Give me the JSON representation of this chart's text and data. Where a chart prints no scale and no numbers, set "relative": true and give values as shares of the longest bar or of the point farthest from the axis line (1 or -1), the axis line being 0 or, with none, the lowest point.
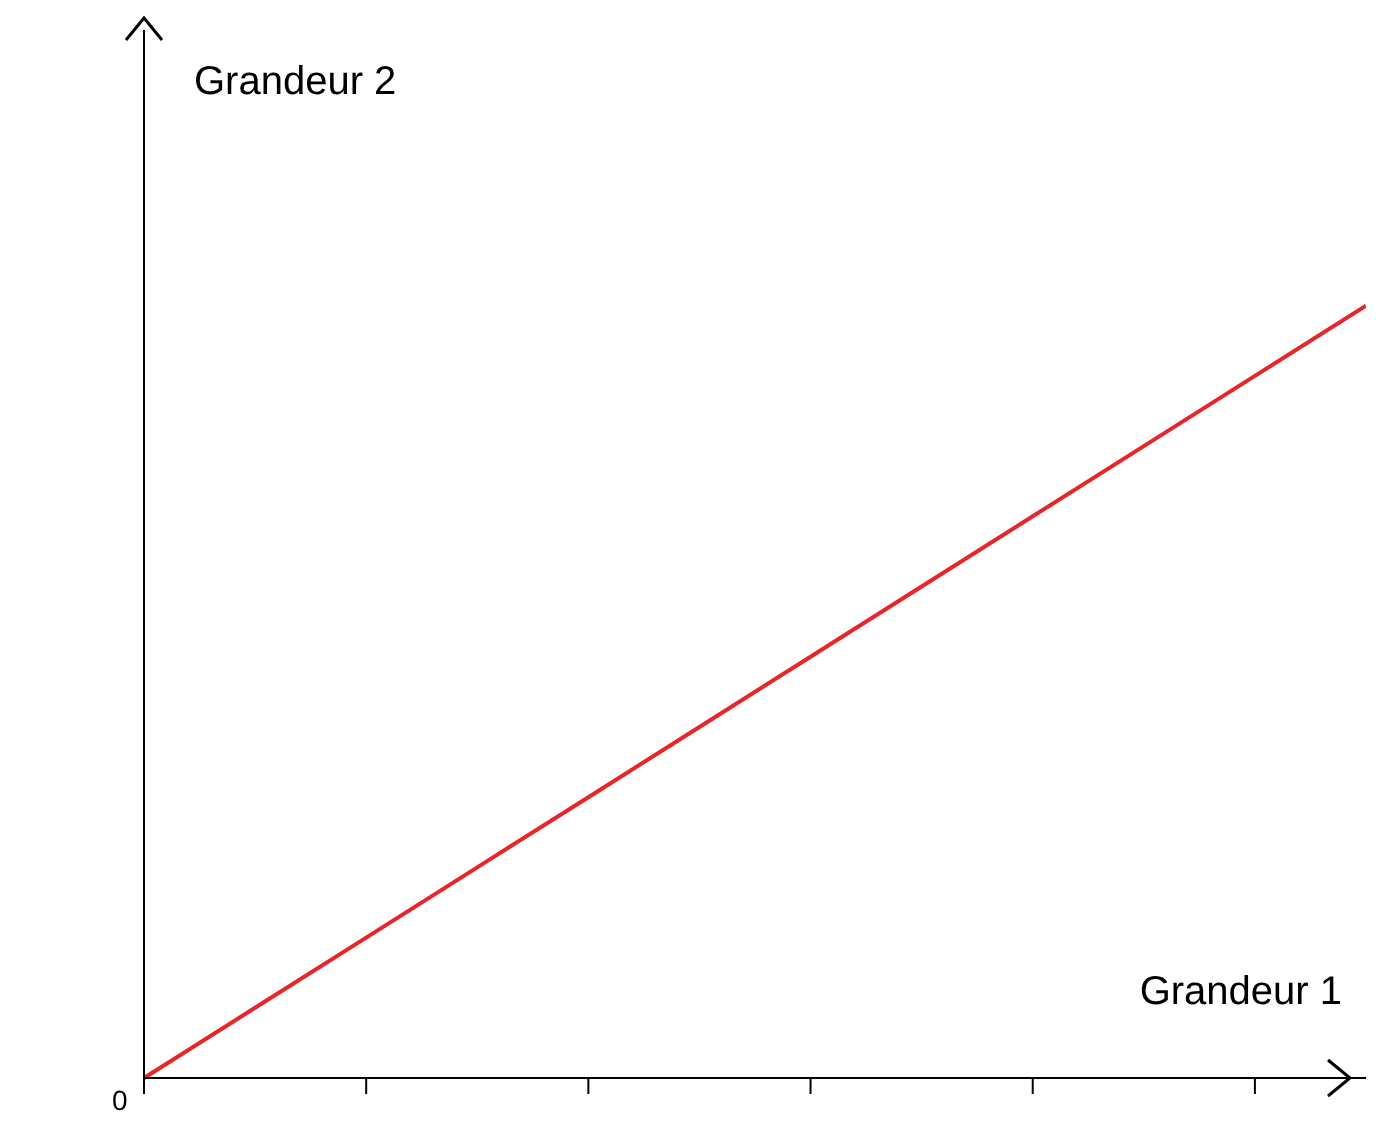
{
  "chart_data": {
    "type": "line",
    "relative": true,
    "xlabel": "Grandeur 1",
    "categories": [
      null,
      null,
      null,
      null,
      null,
      null,
      null,
      null,
      null,
      null,
      null,
      null
    ],
    "series": [
      {
        "color": "#e8262a",
        "values": [
          0,
          0.0909,
          0.1818,
          0.2727,
          0.3636,
          0.4545,
          0.5455,
          0.6364,
          0.7273,
          0.8182,
          0.9091,
          1
        ]
      }
    ],
    "annotations": [
      "0",
      "Grandeur 2"
    ],
    "marker": "none",
    "line_style": "solid"
  }
}
